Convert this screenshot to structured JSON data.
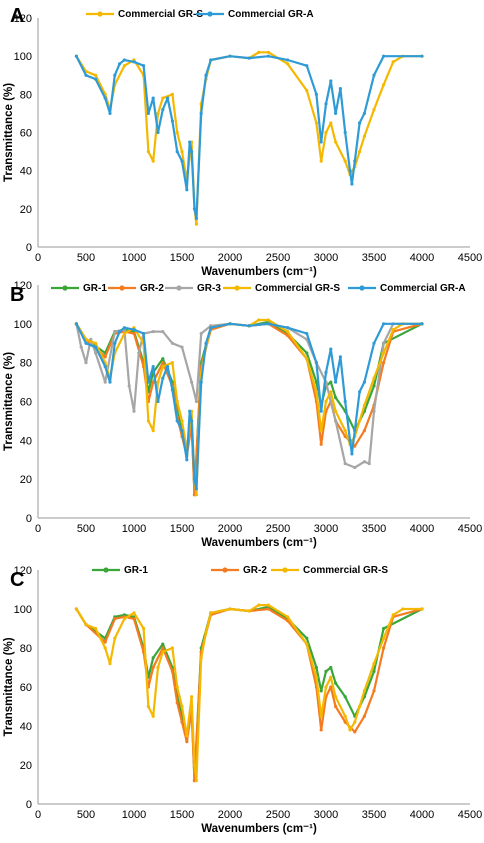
{
  "colors": {
    "GR-1": "#3aa63a",
    "GR-2": "#f47b20",
    "GR-3": "#a6a6a6",
    "Commercial GR-S": "#f5b800",
    "Commercial GR-A": "#2e9bd6"
  },
  "chart_data": [
    {
      "panel": "A",
      "type": "line",
      "xlabel": "Wavenumbers (cm⁻¹)",
      "ylabel": "Transmittance (%)",
      "xlim": [
        0,
        4500
      ],
      "ylim": [
        0,
        120
      ],
      "xticks": [
        0,
        500,
        1000,
        1500,
        2000,
        2500,
        3000,
        3500,
        4000,
        4500
      ],
      "yticks": [
        0,
        20,
        40,
        60,
        80,
        100,
        120
      ],
      "legend": "top",
      "series": [
        {
          "name": "Commercial GR-S",
          "color": "#f5b800",
          "x": [
            400,
            500,
            600,
            700,
            750,
            800,
            900,
            1000,
            1100,
            1150,
            1200,
            1250,
            1300,
            1400,
            1450,
            1500,
            1550,
            1600,
            1630,
            1650,
            1700,
            1750,
            1800,
            2000,
            2200,
            2300,
            2400,
            2600,
            2800,
            2900,
            2950,
            3000,
            3050,
            3100,
            3200,
            3250,
            3300,
            3350,
            3400,
            3500,
            3600,
            3700,
            3800,
            4000
          ],
          "y": [
            100,
            92,
            90,
            80,
            72,
            85,
            95,
            98,
            90,
            50,
            45,
            70,
            78,
            80,
            60,
            50,
            35,
            55,
            20,
            12,
            75,
            88,
            98,
            100,
            99,
            102,
            102,
            96,
            82,
            65,
            45,
            60,
            65,
            55,
            45,
            38,
            42,
            50,
            58,
            72,
            85,
            97,
            100,
            100
          ]
        },
        {
          "name": "Commercial GR-A",
          "color": "#2e9bd6",
          "x": [
            400,
            500,
            600,
            700,
            750,
            800,
            850,
            900,
            1000,
            1100,
            1150,
            1200,
            1250,
            1300,
            1350,
            1400,
            1450,
            1500,
            1550,
            1580,
            1600,
            1630,
            1650,
            1700,
            1750,
            1800,
            2000,
            2200,
            2400,
            2600,
            2800,
            2900,
            2950,
            3000,
            3050,
            3100,
            3150,
            3200,
            3250,
            3270,
            3300,
            3350,
            3400,
            3500,
            3600,
            4000
          ],
          "y": [
            100,
            90,
            88,
            78,
            70,
            90,
            96,
            98,
            97,
            95,
            70,
            78,
            60,
            72,
            78,
            66,
            50,
            45,
            30,
            55,
            50,
            20,
            15,
            70,
            90,
            98,
            100,
            99,
            100,
            98,
            95,
            80,
            55,
            75,
            87,
            70,
            83,
            60,
            40,
            33,
            45,
            65,
            70,
            90,
            100,
            100
          ]
        }
      ]
    },
    {
      "panel": "B",
      "type": "line",
      "xlabel": "Wavenumbers (cm⁻¹)",
      "ylabel": "Transmittance (%)",
      "xlim": [
        0,
        4500
      ],
      "ylim": [
        0,
        120
      ],
      "xticks": [
        0,
        500,
        1000,
        1500,
        2000,
        2500,
        3000,
        3500,
        4000,
        4500
      ],
      "yticks": [
        0,
        20,
        40,
        60,
        80,
        100,
        120
      ],
      "legend": "top",
      "series": [
        {
          "name": "GR-1",
          "color": "#3aa63a",
          "x": [
            400,
            500,
            700,
            800,
            900,
            1000,
            1100,
            1150,
            1200,
            1300,
            1400,
            1450,
            1500,
            1550,
            1600,
            1630,
            1700,
            1800,
            2000,
            2200,
            2400,
            2600,
            2800,
            2900,
            2950,
            3000,
            3050,
            3100,
            3200,
            3300,
            3400,
            3500,
            3600,
            4000
          ],
          "y": [
            100,
            92,
            85,
            96,
            97,
            96,
            80,
            65,
            75,
            82,
            70,
            55,
            45,
            33,
            50,
            12,
            80,
            98,
            100,
            99,
            101,
            95,
            85,
            70,
            58,
            68,
            70,
            62,
            55,
            45,
            55,
            68,
            90,
            100
          ]
        },
        {
          "name": "GR-2",
          "color": "#f47b20",
          "x": [
            400,
            500,
            700,
            800,
            900,
            1000,
            1100,
            1150,
            1200,
            1300,
            1400,
            1450,
            1500,
            1550,
            1600,
            1630,
            1700,
            1800,
            2000,
            2200,
            2400,
            2600,
            2800,
            2900,
            2950,
            3000,
            3050,
            3100,
            3200,
            3300,
            3400,
            3500,
            3600,
            3700,
            4000
          ],
          "y": [
            100,
            92,
            83,
            95,
            96,
            95,
            78,
            60,
            70,
            80,
            68,
            52,
            42,
            32,
            48,
            12,
            78,
            97,
            100,
            99,
            100,
            94,
            82,
            60,
            38,
            55,
            60,
            50,
            42,
            37,
            45,
            58,
            80,
            96,
            100
          ]
        },
        {
          "name": "GR-3",
          "color": "#a6a6a6",
          "x": [
            400,
            450,
            500,
            550,
            600,
            700,
            800,
            900,
            950,
            1000,
            1050,
            1100,
            1200,
            1300,
            1400,
            1500,
            1600,
            1650,
            1700,
            1800,
            2000,
            2200,
            2400,
            2600,
            2800,
            2900,
            3000,
            3100,
            3200,
            3300,
            3400,
            3450,
            3500,
            3600,
            3700,
            4000
          ],
          "y": [
            100,
            88,
            80,
            92,
            85,
            70,
            96,
            97,
            68,
            55,
            85,
            95,
            96,
            96,
            90,
            88,
            70,
            60,
            95,
            99,
            100,
            99,
            100,
            98,
            92,
            80,
            70,
            50,
            28,
            26,
            29,
            28,
            55,
            90,
            100,
            100
          ]
        },
        {
          "name": "Commercial GR-S",
          "color": "#f5b800",
          "x": [
            400,
            500,
            600,
            700,
            750,
            800,
            900,
            1000,
            1100,
            1150,
            1200,
            1250,
            1300,
            1400,
            1450,
            1500,
            1550,
            1600,
            1630,
            1650,
            1700,
            1750,
            1800,
            2000,
            2200,
            2300,
            2400,
            2600,
            2800,
            2900,
            2950,
            3000,
            3050,
            3100,
            3200,
            3250,
            3300,
            3350,
            3400,
            3500,
            3600,
            3700,
            3800,
            4000
          ],
          "y": [
            100,
            92,
            90,
            80,
            72,
            85,
            95,
            98,
            90,
            50,
            45,
            70,
            78,
            80,
            60,
            50,
            35,
            55,
            20,
            12,
            75,
            88,
            98,
            100,
            99,
            102,
            102,
            96,
            82,
            65,
            45,
            60,
            65,
            55,
            45,
            38,
            42,
            50,
            58,
            72,
            85,
            97,
            100,
            100
          ]
        },
        {
          "name": "Commercial GR-A",
          "color": "#2e9bd6",
          "x": [
            400,
            500,
            600,
            700,
            750,
            800,
            850,
            900,
            1000,
            1100,
            1150,
            1200,
            1250,
            1300,
            1350,
            1400,
            1450,
            1500,
            1550,
            1580,
            1600,
            1630,
            1650,
            1700,
            1750,
            1800,
            2000,
            2200,
            2400,
            2600,
            2800,
            2900,
            2950,
            3000,
            3050,
            3100,
            3150,
            3200,
            3250,
            3270,
            3300,
            3350,
            3400,
            3500,
            3600,
            4000
          ],
          "y": [
            100,
            90,
            88,
            78,
            70,
            90,
            96,
            98,
            97,
            95,
            70,
            78,
            60,
            72,
            78,
            66,
            50,
            45,
            30,
            55,
            50,
            20,
            15,
            70,
            90,
            98,
            100,
            99,
            100,
            98,
            95,
            80,
            55,
            75,
            87,
            70,
            83,
            60,
            40,
            33,
            45,
            65,
            70,
            90,
            100,
            100
          ]
        }
      ]
    },
    {
      "panel": "C",
      "type": "line",
      "xlabel": "Wavenumbers (cm⁻¹)",
      "ylabel": "Transmittance (%)",
      "xlim": [
        0,
        4500
      ],
      "ylim": [
        0,
        120
      ],
      "xticks": [
        0,
        500,
        1000,
        1500,
        2000,
        2500,
        3000,
        3500,
        4000,
        4500
      ],
      "yticks": [
        0,
        20,
        40,
        60,
        80,
        100,
        120
      ],
      "legend": "top",
      "series": [
        {
          "name": "GR-1",
          "color": "#3aa63a",
          "x": [
            400,
            500,
            700,
            800,
            900,
            1000,
            1100,
            1150,
            1200,
            1300,
            1400,
            1450,
            1500,
            1550,
            1600,
            1630,
            1700,
            1800,
            2000,
            2200,
            2400,
            2600,
            2800,
            2900,
            2950,
            3000,
            3050,
            3100,
            3200,
            3300,
            3400,
            3500,
            3600,
            4000
          ],
          "y": [
            100,
            92,
            85,
            96,
            97,
            96,
            80,
            65,
            75,
            82,
            70,
            55,
            45,
            33,
            50,
            12,
            80,
            98,
            100,
            99,
            101,
            95,
            85,
            70,
            58,
            68,
            70,
            62,
            55,
            45,
            55,
            68,
            90,
            100
          ]
        },
        {
          "name": "GR-2",
          "color": "#f47b20",
          "x": [
            400,
            500,
            700,
            800,
            900,
            1000,
            1100,
            1150,
            1200,
            1300,
            1400,
            1450,
            1500,
            1550,
            1600,
            1630,
            1700,
            1800,
            2000,
            2200,
            2400,
            2600,
            2800,
            2900,
            2950,
            3000,
            3050,
            3100,
            3200,
            3300,
            3400,
            3500,
            3600,
            3700,
            4000
          ],
          "y": [
            100,
            92,
            83,
            95,
            96,
            95,
            78,
            60,
            70,
            80,
            68,
            52,
            42,
            32,
            48,
            12,
            78,
            97,
            100,
            99,
            100,
            94,
            82,
            60,
            38,
            55,
            60,
            50,
            42,
            37,
            45,
            58,
            80,
            96,
            100
          ]
        },
        {
          "name": "Commercial GR-S",
          "color": "#f5b800",
          "x": [
            400,
            500,
            600,
            700,
            750,
            800,
            900,
            1000,
            1100,
            1150,
            1200,
            1250,
            1300,
            1400,
            1450,
            1500,
            1550,
            1600,
            1630,
            1650,
            1700,
            1750,
            1800,
            2000,
            2200,
            2300,
            2400,
            2600,
            2800,
            2900,
            2950,
            3000,
            3050,
            3100,
            3200,
            3250,
            3300,
            3350,
            3400,
            3500,
            3600,
            3700,
            3800,
            4000
          ],
          "y": [
            100,
            92,
            90,
            80,
            72,
            85,
            95,
            98,
            90,
            50,
            45,
            70,
            78,
            80,
            60,
            50,
            35,
            55,
            20,
            12,
            75,
            88,
            98,
            100,
            99,
            102,
            102,
            96,
            82,
            65,
            45,
            60,
            65,
            55,
            45,
            38,
            42,
            50,
            58,
            72,
            85,
            97,
            100,
            100
          ]
        }
      ]
    }
  ]
}
